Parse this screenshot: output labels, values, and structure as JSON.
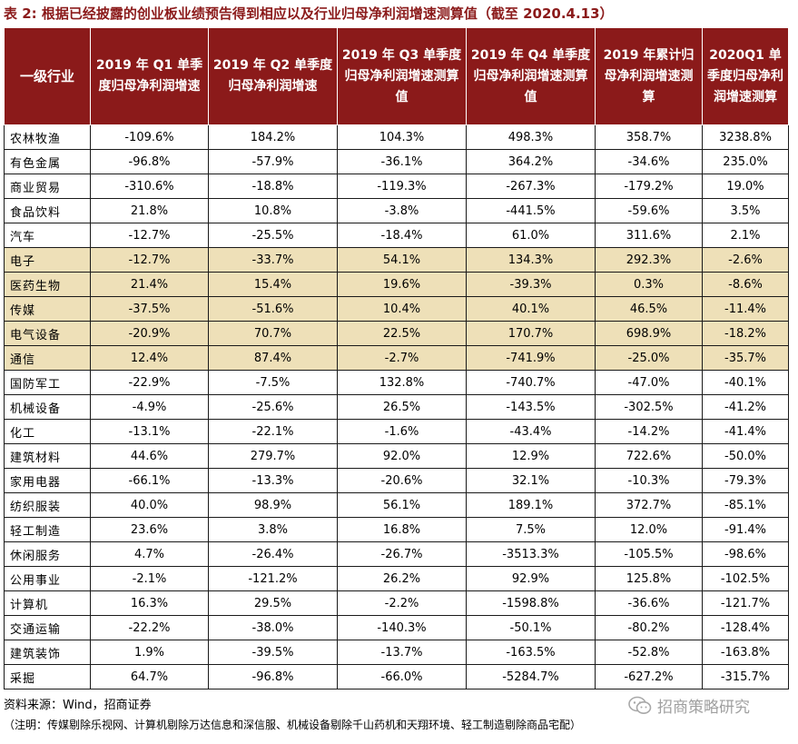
{
  "title": "表 2: 根据已经披露的创业板业绩预告得到相应以及行业归母净利润增速测算值（截至 2020.4.13）",
  "columns": [
    "一级行业",
    "2019 年 Q1 单季度归母净利润增速",
    "2019 年 Q2 单季度归母净利润增速",
    "2019 年 Q3 单季度归母净利润增速测算值",
    "2019 年 Q4 单季度归母净利润增速测算值",
    "2019 年累计归母净利润增速测算",
    "2020Q1 单季度归母净利润增速测算"
  ],
  "rows": [
    {
      "industry": "农林牧渔",
      "q1": "-109.6%",
      "q2": "184.2%",
      "q3": "104.3%",
      "q4": "498.3%",
      "y2019": "358.7%",
      "q1_2020": "3238.8%",
      "highlight": false
    },
    {
      "industry": "有色金属",
      "q1": "-96.8%",
      "q2": "-57.9%",
      "q3": "-36.1%",
      "q4": "364.2%",
      "y2019": "-34.6%",
      "q1_2020": "235.0%",
      "highlight": false
    },
    {
      "industry": "商业贸易",
      "q1": "-310.6%",
      "q2": "-18.8%",
      "q3": "-119.3%",
      "q4": "-267.3%",
      "y2019": "-179.2%",
      "q1_2020": "19.0%",
      "highlight": false
    },
    {
      "industry": "食品饮料",
      "q1": "21.8%",
      "q2": "10.8%",
      "q3": "-3.8%",
      "q4": "-441.5%",
      "y2019": "-59.6%",
      "q1_2020": "3.5%",
      "highlight": false
    },
    {
      "industry": "汽车",
      "q1": "-12.7%",
      "q2": "-25.5%",
      "q3": "-18.4%",
      "q4": "61.0%",
      "y2019": "311.6%",
      "q1_2020": "2.1%",
      "highlight": false
    },
    {
      "industry": "电子",
      "q1": "-12.7%",
      "q2": "-33.7%",
      "q3": "54.1%",
      "q4": "134.3%",
      "y2019": "292.3%",
      "q1_2020": "-2.6%",
      "highlight": true
    },
    {
      "industry": "医药生物",
      "q1": "21.4%",
      "q2": "15.4%",
      "q3": "19.6%",
      "q4": "-39.3%",
      "y2019": "0.3%",
      "q1_2020": "-8.6%",
      "highlight": true
    },
    {
      "industry": "传媒",
      "q1": "-37.5%",
      "q2": "-51.6%",
      "q3": "10.4%",
      "q4": "40.1%",
      "y2019": "46.5%",
      "q1_2020": "-11.4%",
      "highlight": true
    },
    {
      "industry": "电气设备",
      "q1": "-20.9%",
      "q2": "70.7%",
      "q3": "22.5%",
      "q4": "170.7%",
      "y2019": "698.9%",
      "q1_2020": "-18.2%",
      "highlight": true
    },
    {
      "industry": "通信",
      "q1": "12.4%",
      "q2": "87.4%",
      "q3": "-2.7%",
      "q4": "-741.9%",
      "y2019": "-25.0%",
      "q1_2020": "-35.7%",
      "highlight": true
    },
    {
      "industry": "国防军工",
      "q1": "-22.9%",
      "q2": "-7.5%",
      "q3": "132.8%",
      "q4": "-740.7%",
      "y2019": "-47.0%",
      "q1_2020": "-40.1%",
      "highlight": false
    },
    {
      "industry": "机械设备",
      "q1": "-4.9%",
      "q2": "-25.6%",
      "q3": "26.5%",
      "q4": "-143.5%",
      "y2019": "-302.5%",
      "q1_2020": "-41.2%",
      "highlight": false
    },
    {
      "industry": "化工",
      "q1": "-13.1%",
      "q2": "-22.1%",
      "q3": "-1.6%",
      "q4": "-43.4%",
      "y2019": "-14.2%",
      "q1_2020": "-41.4%",
      "highlight": false
    },
    {
      "industry": "建筑材料",
      "q1": "44.6%",
      "q2": "279.7%",
      "q3": "92.0%",
      "q4": "12.9%",
      "y2019": "722.6%",
      "q1_2020": "-50.0%",
      "highlight": false
    },
    {
      "industry": "家用电器",
      "q1": "-66.1%",
      "q2": "-13.3%",
      "q3": "-20.6%",
      "q4": "32.1%",
      "y2019": "-10.3%",
      "q1_2020": "-79.3%",
      "highlight": false
    },
    {
      "industry": "纺织服装",
      "q1": "40.0%",
      "q2": "98.9%",
      "q3": "56.1%",
      "q4": "189.1%",
      "y2019": "372.7%",
      "q1_2020": "-85.1%",
      "highlight": false
    },
    {
      "industry": "轻工制造",
      "q1": "23.6%",
      "q2": "3.8%",
      "q3": "16.8%",
      "q4": "7.5%",
      "y2019": "12.0%",
      "q1_2020": "-91.4%",
      "highlight": false
    },
    {
      "industry": "休闲服务",
      "q1": "4.7%",
      "q2": "-26.4%",
      "q3": "-26.7%",
      "q4": "-3513.3%",
      "y2019": "-105.5%",
      "q1_2020": "-98.6%",
      "highlight": false
    },
    {
      "industry": "公用事业",
      "q1": "-2.1%",
      "q2": "-121.2%",
      "q3": "26.2%",
      "q4": "92.9%",
      "y2019": "125.8%",
      "q1_2020": "-102.5%",
      "highlight": false
    },
    {
      "industry": "计算机",
      "q1": "16.3%",
      "q2": "29.5%",
      "q3": "-2.2%",
      "q4": "-1598.8%",
      "y2019": "-36.6%",
      "q1_2020": "-121.7%",
      "highlight": false
    },
    {
      "industry": "交通运输",
      "q1": "-22.2%",
      "q2": "-38.0%",
      "q3": "-140.3%",
      "q4": "-50.1%",
      "y2019": "-80.2%",
      "q1_2020": "-128.4%",
      "highlight": false
    },
    {
      "industry": "建筑装饰",
      "q1": "1.9%",
      "q2": "-39.5%",
      "q3": "-13.7%",
      "q4": "-163.5%",
      "y2019": "-52.8%",
      "q1_2020": "-163.8%",
      "highlight": false
    },
    {
      "industry": "采掘",
      "q1": "64.7%",
      "q2": "-96.8%",
      "q3": "-66.0%",
      "q4": "-5284.7%",
      "y2019": "-627.2%",
      "q1_2020": "-315.7%",
      "highlight": false
    }
  ],
  "source": "资料来源：Wind，招商证券",
  "note": "（注明：传媒剔除乐视网、计算机剔除万达信息和深信服、机械设备剔除千山药机和天翔环境、轻工制造剔除商品宅配）",
  "watermark": "招商策略研究",
  "colors": {
    "header_bg": "#8b1a1a",
    "highlight_bg": "#eee0b8",
    "title": "#8b1a1a"
  }
}
